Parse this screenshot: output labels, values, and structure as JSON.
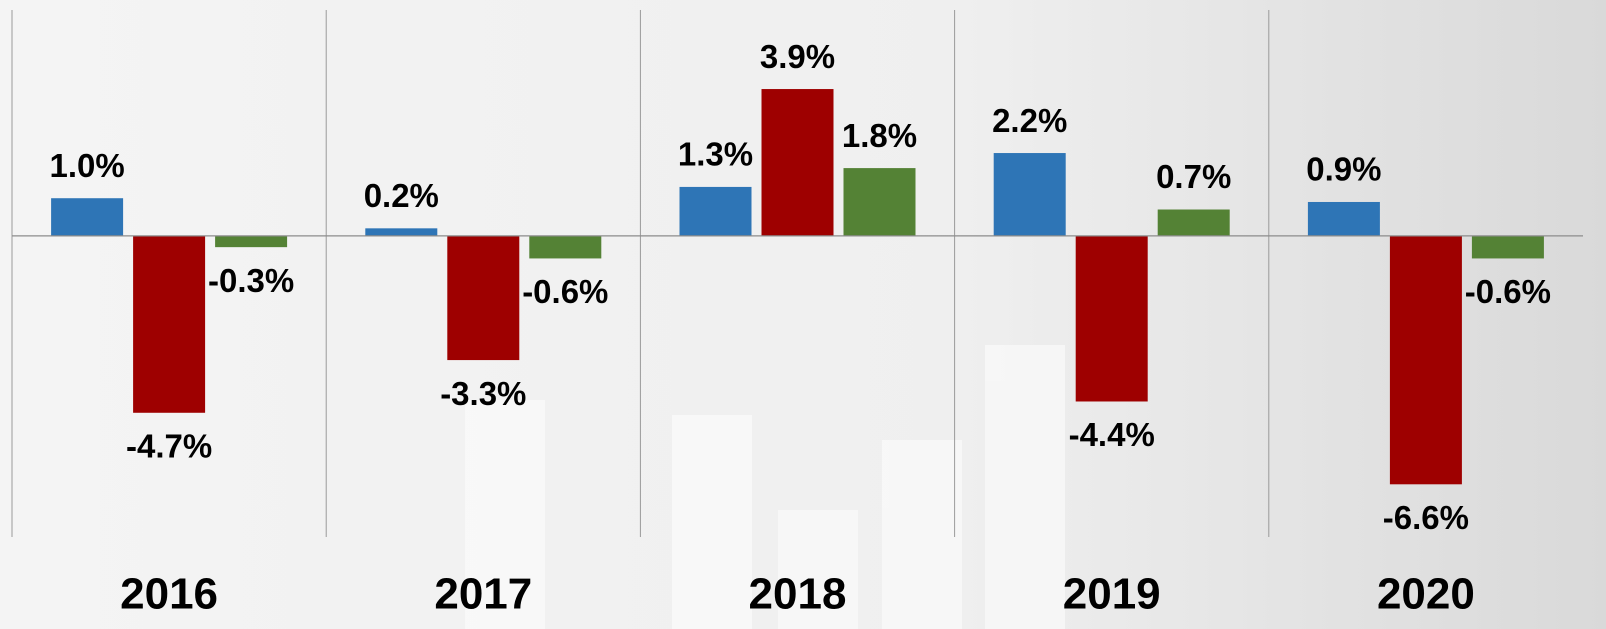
{
  "chart_data": {
    "type": "bar",
    "categories": [
      "2016",
      "2017",
      "2018",
      "2019",
      "2020"
    ],
    "series": [
      {
        "color": "#2e75b6",
        "values": [
          1.0,
          0.2,
          1.3,
          2.2,
          0.9
        ],
        "value_labels": [
          "1.0%",
          "0.2%",
          "1.3%",
          "2.2%",
          "0.9%"
        ]
      },
      {
        "color": "#9e0000",
        "values": [
          -4.7,
          -3.3,
          3.9,
          -4.4,
          -6.6
        ],
        "value_labels": [
          "-4.7%",
          "-3.3%",
          "3.9%",
          "-4.4%",
          "-6.6%"
        ]
      },
      {
        "color": "#548235",
        "values": [
          -0.3,
          -0.6,
          1.8,
          0.7,
          -0.6
        ],
        "value_labels": [
          "-0.3%",
          "-0.6%",
          "1.8%",
          "0.7%",
          "-0.6%"
        ]
      }
    ],
    "ylim": [
      -8,
      6
    ]
  }
}
